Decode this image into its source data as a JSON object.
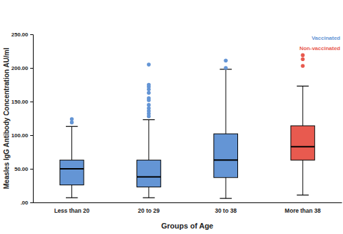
{
  "chart_data": {
    "type": "box",
    "x_label": "Groups of Age",
    "y_label": "Measles IgG Antibody Concentration AU/ml",
    "categories": [
      "Less than 20",
      "20 to 29",
      "30 to 38",
      "More than 38"
    ],
    "series": [
      {
        "name": "Vaccinated",
        "color": "#6495d5",
        "values": [
          {
            "min": 7,
            "q1": 26,
            "median": 50,
            "q3": 63,
            "max": 113,
            "outliers": [
              119,
              124
            ]
          },
          {
            "min": 7,
            "q1": 23,
            "median": 38,
            "q3": 63,
            "max": 123,
            "outliers": [
              128,
              132,
              136,
              140,
              145,
              152,
              155,
              163,
              168,
              172,
              175,
              205
            ]
          },
          {
            "min": 6,
            "q1": 37,
            "median": 63,
            "q3": 102,
            "max": 198,
            "outliers": [
              200,
              211
            ]
          },
          null
        ]
      },
      {
        "name": "Non-vaccinated",
        "color": "#e85a4f",
        "values": [
          null,
          null,
          null,
          {
            "min": 11,
            "q1": 63,
            "median": 83,
            "q3": 114,
            "max": 173,
            "outliers": [
              203,
              213,
              219
            ]
          }
        ]
      }
    ],
    "ylim": [
      0,
      250
    ],
    "yticks": [
      {
        "value": 0,
        "label": ".00"
      },
      {
        "value": 50,
        "label": "50.00"
      },
      {
        "value": 100,
        "label": "100.00"
      },
      {
        "value": 150,
        "label": "150.00"
      },
      {
        "value": 200,
        "label": "200.00"
      },
      {
        "value": 250,
        "label": "250.00"
      }
    ],
    "legend": "upper right",
    "grid": false
  }
}
